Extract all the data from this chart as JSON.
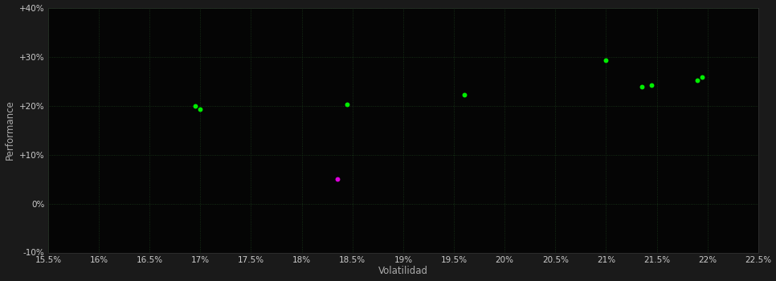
{
  "background_color": "#1a1a1a",
  "plot_bg_color": "#050505",
  "grid_color": "#1a3a1a",
  "xlabel": "Volatilidad",
  "ylabel": "Performance",
  "xlim": [
    0.155,
    0.225
  ],
  "ylim": [
    -0.1,
    0.4
  ],
  "xticks": [
    0.155,
    0.16,
    0.165,
    0.17,
    0.175,
    0.18,
    0.185,
    0.19,
    0.195,
    0.2,
    0.205,
    0.21,
    0.215,
    0.22,
    0.225
  ],
  "yticks": [
    -0.1,
    0.0,
    0.1,
    0.2,
    0.3,
    0.4
  ],
  "ytick_labels": [
    "-10%",
    "0%",
    "+10%",
    "+20%",
    "+30%",
    "+40%"
  ],
  "xtick_labels": [
    "15.5%",
    "16%",
    "16.5%",
    "17%",
    "17.5%",
    "18%",
    "18.5%",
    "19%",
    "19.5%",
    "20%",
    "20.5%",
    "21%",
    "21.5%",
    "22%",
    "22.5%"
  ],
  "green_points": [
    [
      0.1695,
      0.2
    ],
    [
      0.17,
      0.193
    ],
    [
      0.1845,
      0.202
    ],
    [
      0.196,
      0.222
    ],
    [
      0.21,
      0.293
    ],
    [
      0.2135,
      0.238
    ],
    [
      0.2145,
      0.242
    ],
    [
      0.219,
      0.252
    ],
    [
      0.2195,
      0.258
    ]
  ],
  "magenta_points": [
    [
      0.1835,
      0.05
    ]
  ],
  "dot_size": 18,
  "green_color": "#00ee00",
  "magenta_color": "#dd00dd",
  "tick_color": "#cccccc",
  "label_color": "#aaaaaa",
  "tick_fontsize": 7.5,
  "label_fontsize": 8.5
}
